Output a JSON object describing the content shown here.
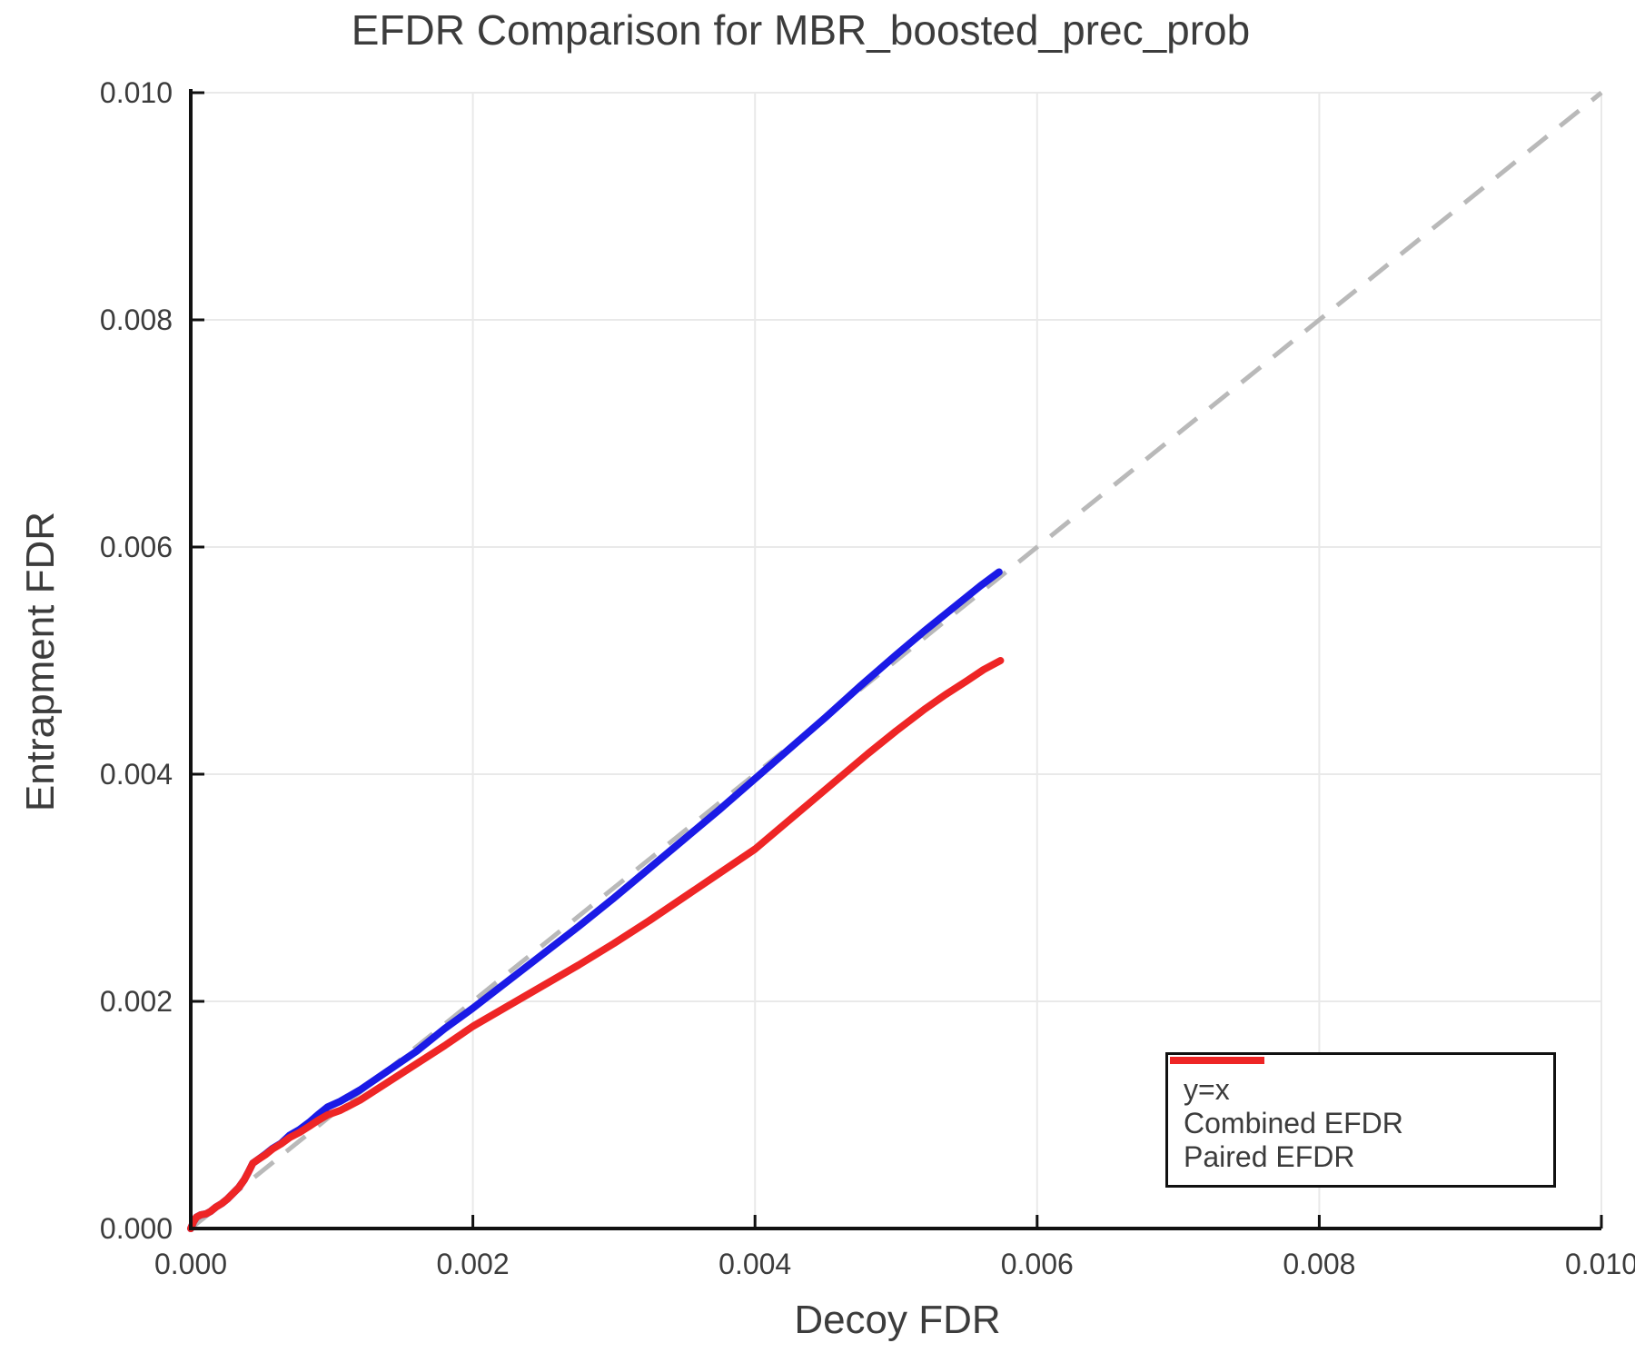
{
  "chart_data": {
    "type": "line",
    "title": "EFDR Comparison for MBR_boosted_prec_prob",
    "xlabel": "Decoy FDR",
    "ylabel": "Entrapment FDR",
    "xlim": [
      0.0,
      0.01
    ],
    "ylim": [
      0.0,
      0.01
    ],
    "grid": true,
    "legend_position": "lower right",
    "x_tick_values": [
      0.0,
      0.002,
      0.004,
      0.006,
      0.008,
      0.01
    ],
    "x_tick_labels": [
      "0.000",
      "0.002",
      "0.004",
      "0.006",
      "0.008",
      "0.010"
    ],
    "y_tick_values": [
      0.0,
      0.002,
      0.004,
      0.006,
      0.008,
      0.01
    ],
    "y_tick_labels": [
      "0.000",
      "0.002",
      "0.004",
      "0.006",
      "0.008",
      "0.010"
    ],
    "identity": {
      "label": "y=x",
      "color": "#b9b9b9",
      "dashed": true,
      "points": [
        [
          0.0,
          0.0
        ],
        [
          0.01,
          0.01
        ]
      ]
    },
    "series": [
      {
        "name": "Combined EFDR",
        "color": "#1a1ae6",
        "points": [
          [
            0.0,
            0.0
          ],
          [
            2e-05,
            6e-05
          ],
          [
            4e-05,
            0.0001
          ],
          [
            7e-05,
            0.00012
          ],
          [
            0.00011,
            0.00013
          ],
          [
            0.00014,
            0.00015
          ],
          [
            0.00018,
            0.00019
          ],
          [
            0.00022,
            0.00022
          ],
          [
            0.00026,
            0.00026
          ],
          [
            0.0003,
            0.00031
          ],
          [
            0.00034,
            0.00036
          ],
          [
            0.00038,
            0.00043
          ],
          [
            0.00041,
            0.0005
          ],
          [
            0.00044,
            0.000575
          ],
          [
            0.00048,
            0.00061
          ],
          [
            0.00053,
            0.000655
          ],
          [
            0.00058,
            0.000705
          ],
          [
            0.00064,
            0.00075
          ],
          [
            0.0007,
            0.00082
          ],
          [
            0.00077,
            0.00087
          ],
          [
            0.00084,
            0.000935
          ],
          [
            0.0009,
            0.001
          ],
          [
            0.00097,
            0.00107
          ],
          [
            0.00106,
            0.00112
          ],
          [
            0.0012,
            0.00122
          ],
          [
            0.0014,
            0.00139
          ],
          [
            0.0016,
            0.00156
          ],
          [
            0.0018,
            0.00176
          ],
          [
            0.002,
            0.00194
          ],
          [
            0.00225,
            0.00218
          ],
          [
            0.0025,
            0.00242
          ],
          [
            0.00275,
            0.00266
          ],
          [
            0.003,
            0.00291
          ],
          [
            0.00325,
            0.00317
          ],
          [
            0.0035,
            0.00343
          ],
          [
            0.00375,
            0.00369
          ],
          [
            0.004,
            0.00396
          ],
          [
            0.00425,
            0.00423
          ],
          [
            0.0045,
            0.0045
          ],
          [
            0.00475,
            0.00478
          ],
          [
            0.005,
            0.00505
          ],
          [
            0.0052,
            0.00526
          ],
          [
            0.0054,
            0.00546
          ],
          [
            0.0056,
            0.00566
          ],
          [
            0.00573,
            0.00578
          ]
        ]
      },
      {
        "name": "Paired EFDR",
        "color": "#ee2525",
        "points": [
          [
            0.0,
            0.0
          ],
          [
            2e-05,
            6e-05
          ],
          [
            4e-05,
            0.0001
          ],
          [
            7e-05,
            0.00012
          ],
          [
            0.00011,
            0.00013
          ],
          [
            0.00014,
            0.00015
          ],
          [
            0.00018,
            0.00019
          ],
          [
            0.00022,
            0.00022
          ],
          [
            0.00026,
            0.00026
          ],
          [
            0.0003,
            0.00031
          ],
          [
            0.00034,
            0.00036
          ],
          [
            0.00038,
            0.00043
          ],
          [
            0.00041,
            0.0005
          ],
          [
            0.00044,
            0.000575
          ],
          [
            0.00048,
            0.00061
          ],
          [
            0.00053,
            0.00065
          ],
          [
            0.00058,
            0.0007
          ],
          [
            0.00064,
            0.000745
          ],
          [
            0.0007,
            0.0008
          ],
          [
            0.00077,
            0.000845
          ],
          [
            0.00084,
            0.0009
          ],
          [
            0.0009,
            0.00095
          ],
          [
            0.00097,
            0.001
          ],
          [
            0.00106,
            0.00104
          ],
          [
            0.0012,
            0.00113
          ],
          [
            0.0014,
            0.00129
          ],
          [
            0.0016,
            0.00145
          ],
          [
            0.0018,
            0.00161
          ],
          [
            0.002,
            0.00178
          ],
          [
            0.00225,
            0.00196
          ],
          [
            0.0025,
            0.00214
          ],
          [
            0.00275,
            0.00232
          ],
          [
            0.003,
            0.00251
          ],
          [
            0.00325,
            0.00271
          ],
          [
            0.0035,
            0.00292
          ],
          [
            0.00375,
            0.00313
          ],
          [
            0.004,
            0.00334
          ],
          [
            0.0042,
            0.00355
          ],
          [
            0.0044,
            0.00376
          ],
          [
            0.0046,
            0.00397
          ],
          [
            0.0048,
            0.00418
          ],
          [
            0.005,
            0.00438
          ],
          [
            0.0052,
            0.00457
          ],
          [
            0.00535,
            0.0047
          ],
          [
            0.0055,
            0.00482
          ],
          [
            0.00562,
            0.00492
          ],
          [
            0.00574,
            0.005
          ]
        ]
      }
    ],
    "style": {
      "grid_color": "#e9e9e9",
      "spine_color": "#111111",
      "tick_color": "#111111",
      "line_width": 8,
      "identity_line_width": 5
    }
  }
}
